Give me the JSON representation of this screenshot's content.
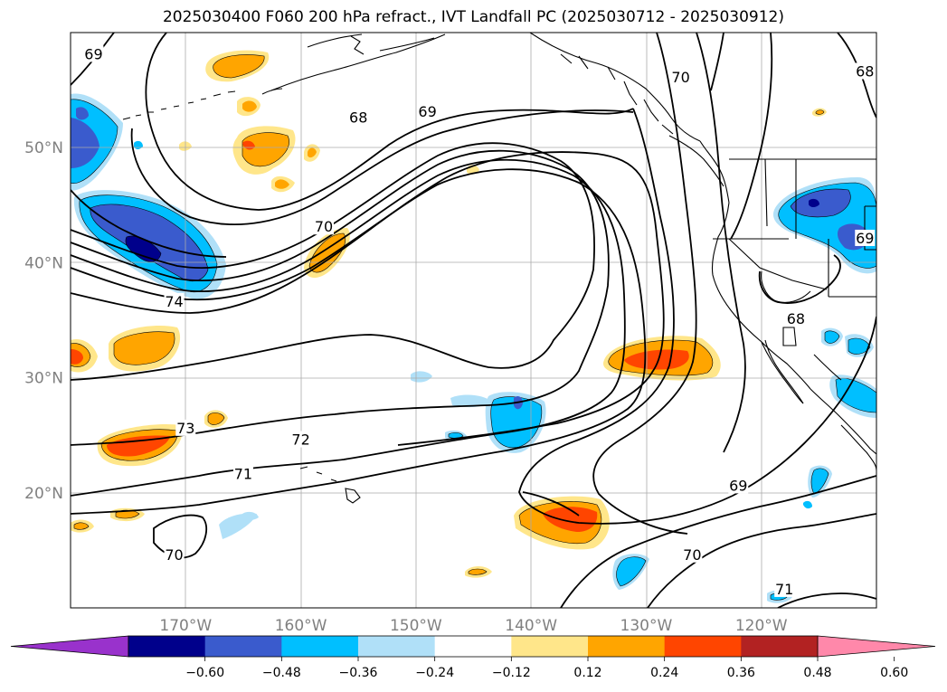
{
  "title": "2025030400 F060 200 hPa refract., IVT Landfall PC (2025030712 - 2025030912)",
  "map": {
    "projection": "PlateCarree",
    "lon_range": [
      -180,
      -110
    ],
    "lat_range": [
      10,
      60
    ],
    "lat_ticks": [
      {
        "value": 50,
        "label": "50°N"
      },
      {
        "value": 40,
        "label": "40°N"
      },
      {
        "value": 30,
        "label": "30°N"
      },
      {
        "value": 20,
        "label": "20°N"
      }
    ],
    "lon_ticks": [
      {
        "value": -170,
        "label": "170°W"
      },
      {
        "value": -160,
        "label": "160°W"
      },
      {
        "value": -150,
        "label": "150°W"
      },
      {
        "value": -140,
        "label": "140°W"
      },
      {
        "value": -130,
        "label": "130°W"
      },
      {
        "value": -120,
        "label": "120°W"
      }
    ],
    "grid": true,
    "coastlines": true
  },
  "contour_labels": [
    {
      "text": "69",
      "lon": -178,
      "lat": 58
    },
    {
      "text": "68",
      "lon": -155,
      "lat": 52.5
    },
    {
      "text": "69",
      "lon": -149,
      "lat": 53
    },
    {
      "text": "70",
      "lon": -127,
      "lat": 56
    },
    {
      "text": "68",
      "lon": -111,
      "lat": 56.5
    },
    {
      "text": "70",
      "lon": -158,
      "lat": 43
    },
    {
      "text": "74",
      "lon": -171,
      "lat": 36.5
    },
    {
      "text": "69",
      "lon": -111,
      "lat": 42
    },
    {
      "text": "68",
      "lon": -117,
      "lat": 35
    },
    {
      "text": "73",
      "lon": -170,
      "lat": 25.5
    },
    {
      "text": "72",
      "lon": -160,
      "lat": 24.5
    },
    {
      "text": "71",
      "lon": -165,
      "lat": 21.5
    },
    {
      "text": "69",
      "lon": -122,
      "lat": 20.5
    },
    {
      "text": "70",
      "lon": -171,
      "lat": 14.5
    },
    {
      "text": "70",
      "lon": -126,
      "lat": 14.5
    },
    {
      "text": "71",
      "lon": -118,
      "lat": 11.5
    }
  ],
  "colorbar": {
    "extend": "both",
    "tick_labels": [
      "−0.60",
      "−0.48",
      "−0.36",
      "−0.24",
      "−0.12",
      "0.12",
      "0.24",
      "0.36",
      "0.48",
      "0.60"
    ],
    "boundaries": [
      -0.6,
      -0.48,
      -0.36,
      -0.24,
      -0.12,
      0.12,
      0.24,
      0.36,
      0.48,
      0.6
    ],
    "colors": [
      "#9932cc",
      "#00008b",
      "#3a5bcd",
      "#00bfff",
      "#b0e0f8",
      "#ffffff",
      "#ffe68a",
      "#ffa500",
      "#ff4500",
      "#b22222",
      "#ff88aa"
    ]
  }
}
